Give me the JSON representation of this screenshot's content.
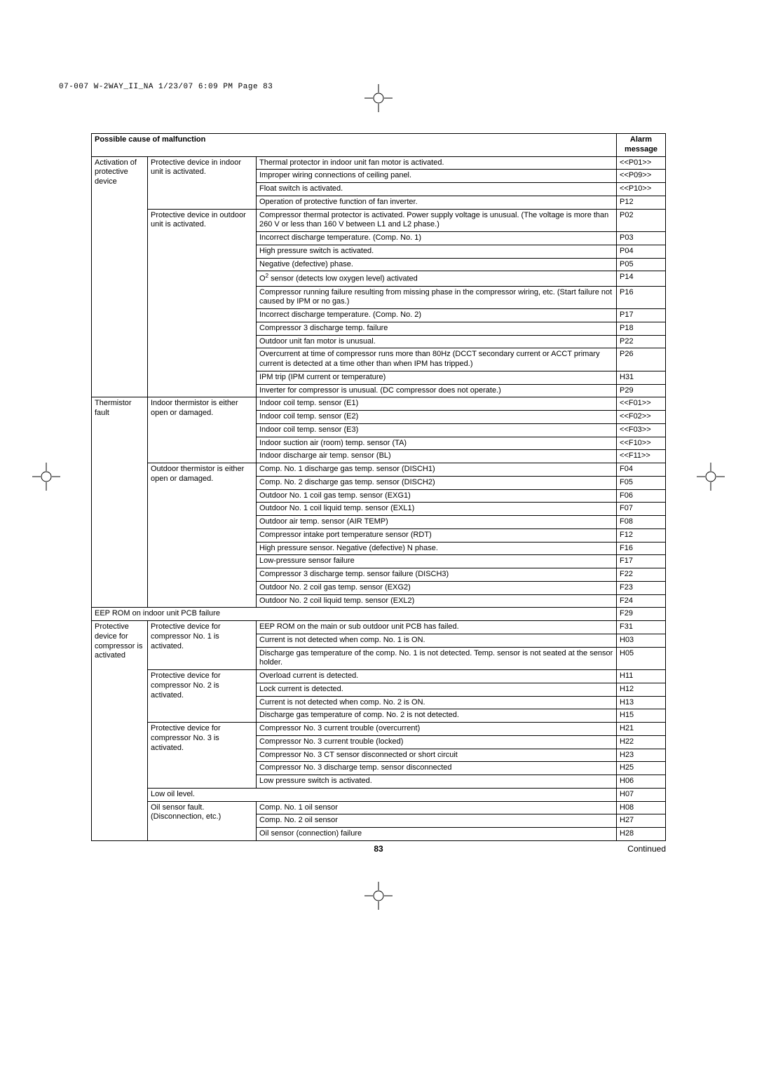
{
  "header_line": "07-007 W-2WAY_II_NA  1/23/07  6:09 PM  Page 83",
  "page_number": "83",
  "continued_label": "Continued",
  "table_header": {
    "cause": "Possible cause of malfunction",
    "alarm": "Alarm message"
  },
  "groups": [
    {
      "col1": "Activation of protective device",
      "col1_rowspan": 18,
      "subgroups": [
        {
          "col2": "Protective device in indoor unit is activated.",
          "rows": [
            {
              "desc": "Thermal protector in indoor unit fan motor is activated.",
              "code": "<<P01>>"
            },
            {
              "desc": "Improper wiring connections of ceiling panel.",
              "code": "<<P09>>"
            },
            {
              "desc": "Float switch is activated.",
              "code": "<<P10>>"
            },
            {
              "desc": "Operation of protective function of fan inverter.",
              "code": "P12"
            }
          ]
        },
        {
          "col2": "Protective device in outdoor unit is activated.",
          "rows": [
            {
              "desc": "Compressor thermal protector is activated.\nPower supply voltage is unusual. (The voltage is more than 260 V or less than 160 V between L1 and L2 phase.)",
              "code": "P02"
            },
            {
              "desc": "Incorrect discharge temperature. (Comp. No. 1)",
              "code": "P03"
            },
            {
              "desc": "High pressure switch is activated.",
              "code": "P04"
            },
            {
              "desc": "Negative (defective) phase.",
              "code": "P05"
            },
            {
              "desc_html": "O<sup>2</sup> sensor (detects low oxygen level) activated",
              "code": "P14"
            },
            {
              "desc": "Compressor running failure resulting from missing phase in the compressor wiring, etc. (Start failure not caused by IPM or no gas.)",
              "code": "P16"
            },
            {
              "desc": "Incorrect discharge temperature. (Comp. No. 2)",
              "code": "P17"
            },
            {
              "desc": "Compressor 3 discharge temp. failure",
              "code": "P18"
            },
            {
              "desc": "Outdoor unit fan motor is unusual.",
              "code": "P22"
            },
            {
              "desc": "Overcurrent at time of compressor runs more than 80Hz (DCCT secondary current or ACCT primary current is detected at a time other than when IPM has tripped.)",
              "code": "P26"
            },
            {
              "desc": "IPM trip (IPM current or temperature)",
              "code": "H31"
            },
            {
              "desc": "Inverter for compressor is unusual. (DC compressor does not operate.)",
              "code": "P29"
            }
          ]
        }
      ]
    },
    {
      "col1": "Thermistor fault",
      "col1_rowspan": 18,
      "subgroups": [
        {
          "col2": "Indoor thermistor is either open or damaged.",
          "rows": [
            {
              "desc": "Indoor coil temp. sensor (E1)",
              "code": "<<F01>>"
            },
            {
              "desc": "Indoor coil temp. sensor (E2)",
              "code": "<<F02>>"
            },
            {
              "desc": "Indoor coil temp. sensor (E3)",
              "code": "<<F03>>"
            },
            {
              "desc": "Indoor suction air (room) temp. sensor (TA)",
              "code": "<<F10>>"
            },
            {
              "desc": "Indoor discharge air temp. sensor (BL)",
              "code": "<<F11>>"
            }
          ]
        },
        {
          "col2": "Outdoor thermistor is either open or damaged.",
          "rows": [
            {
              "desc": "Comp. No. 1 discharge gas temp. sensor (DISCH1)",
              "code": "F04"
            },
            {
              "desc": "Comp. No. 2 discharge gas temp. sensor (DISCH2)",
              "code": "F05"
            },
            {
              "desc": "Outdoor No. 1 coil gas temp. sensor (EXG1)",
              "code": "F06"
            },
            {
              "desc": "Outdoor No. 1 coil liquid temp. sensor  (EXL1)",
              "code": "F07"
            },
            {
              "desc": "Outdoor air temp. sensor (AIR TEMP)",
              "code": "F08"
            },
            {
              "desc": "Compressor intake port temperature sensor (RDT)",
              "code": "F12"
            },
            {
              "desc": "High pressure sensor. Negative (defective) N phase.",
              "code": "F16"
            },
            {
              "desc": "Low-pressure sensor failure",
              "code": "F17"
            },
            {
              "desc": "Compressor 3 discharge temp. sensor failure (DISCH3)",
              "code": "F22"
            },
            {
              "desc": "Outdoor No. 2 coil gas temp. sensor (EXG2)",
              "code": "F23"
            },
            {
              "desc": "Outdoor No. 2 coil liquid temp. sensor (EXL2)",
              "code": "F24"
            }
          ]
        }
      ]
    }
  ],
  "eep_row": {
    "desc": "EEP ROM on indoor unit PCB failure",
    "code": "F29"
  },
  "protective_group": {
    "col1": "Protective device for compressor is activated",
    "col1_rowspan": 15,
    "subgroups": [
      {
        "col2": "Protective device for compressor No. 1 is activated.",
        "rows": [
          {
            "desc": "EEP ROM on the main or sub outdoor unit PCB has failed.",
            "code": "F31"
          },
          {
            "desc": "Current is not detected when comp. No. 1 is ON.",
            "code": "H03"
          },
          {
            "desc": "Discharge gas temperature of the comp. No. 1 is not detected. Temp. sensor is not seated at the sensor holder.",
            "code": "H05"
          }
        ]
      },
      {
        "col2": "Protective device for compressor No. 2 is activated.",
        "rows": [
          {
            "desc": "Overload current is detected.",
            "code": "H11"
          },
          {
            "desc": "Lock current is detected.",
            "code": "H12"
          },
          {
            "desc": "Current is not detected when comp. No. 2 is ON.",
            "code": "H13"
          },
          {
            "desc": "Discharge gas temperature of comp. No. 2 is not detected.",
            "code": "H15"
          }
        ]
      },
      {
        "col2": "Protective device for compressor No. 3 is activated.",
        "rows": [
          {
            "desc": "Compressor No. 3 current trouble (overcurrent)",
            "code": "H21"
          },
          {
            "desc": "Compressor No. 3 current trouble (locked)",
            "code": "H22"
          },
          {
            "desc": "Compressor No. 3 CT sensor disconnected or short circuit",
            "code": "H23"
          },
          {
            "desc": "Compressor No. 3 discharge temp. sensor disconnected",
            "code": "H25"
          },
          {
            "desc": "Low pressure switch is activated.",
            "code": "H06"
          }
        ]
      },
      {
        "col2_full": "Low oil level.",
        "code": "H07"
      },
      {
        "col2": "Oil sensor fault. (Disconnection, etc.)",
        "rows": [
          {
            "desc": "Comp. No. 1 oil sensor",
            "code": "H08"
          },
          {
            "desc": "Comp. No. 2 oil sensor",
            "code": "H27"
          },
          {
            "desc": "Oil sensor (connection) failure",
            "code": "H28"
          }
        ]
      }
    ]
  }
}
